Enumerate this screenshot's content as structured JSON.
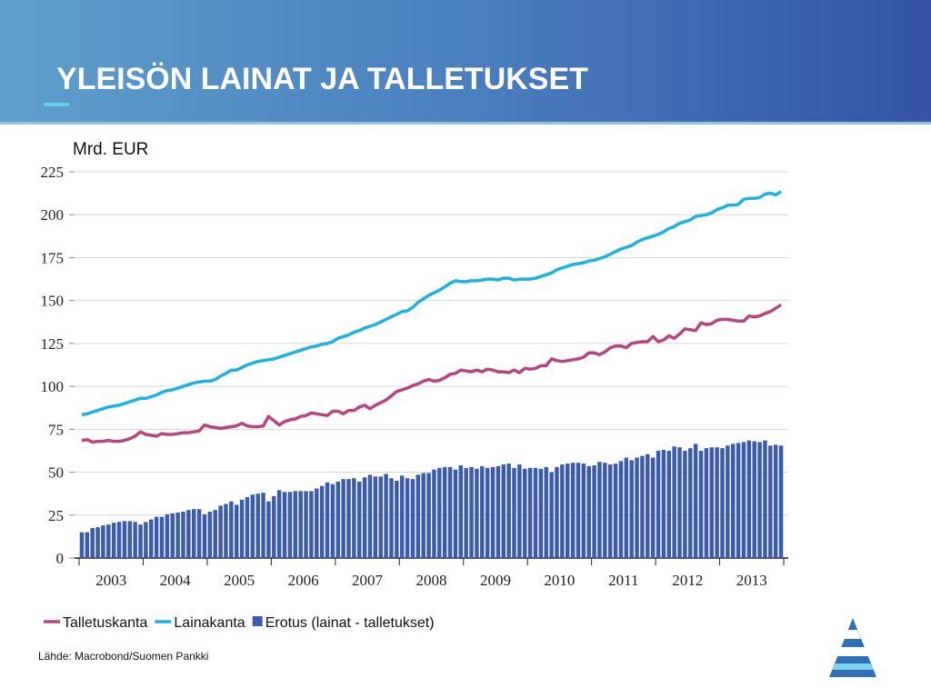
{
  "title": "YLEISÖN LAINAT JA TALLETUKSET",
  "source": "Lähde: Macrobond/Suomen Pankki",
  "chart_data": {
    "type": "bar",
    "ylabel": "Mrd. EUR",
    "ylim": [
      0,
      225
    ],
    "yticks": [
      0,
      25,
      50,
      75,
      100,
      125,
      150,
      175,
      200,
      225
    ],
    "grid": true,
    "categories": [
      null,
      null,
      null,
      null,
      null,
      null,
      "2003",
      null,
      null,
      null,
      null,
      null,
      null,
      null,
      null,
      null,
      null,
      null,
      "2004",
      null,
      null,
      null,
      null,
      null,
      null,
      null,
      null,
      null,
      null,
      null,
      "2005",
      null,
      null,
      null,
      null,
      null,
      null,
      null,
      null,
      null,
      null,
      null,
      "2006",
      null,
      null,
      null,
      null,
      null,
      null,
      null,
      null,
      null,
      null,
      null,
      "2007",
      null,
      null,
      null,
      null,
      null,
      null,
      null,
      null,
      null,
      null,
      null,
      "2008",
      null,
      null,
      null,
      null,
      null,
      null,
      null,
      null,
      null,
      null,
      null,
      "2009",
      null,
      null,
      null,
      null,
      null,
      null,
      null,
      null,
      null,
      null,
      null,
      "2010",
      null,
      null,
      null,
      null,
      null,
      null,
      null,
      null,
      null,
      null,
      null,
      "2011",
      null,
      null,
      null,
      null,
      null,
      null,
      null,
      null,
      null,
      null,
      null,
      "2012",
      null,
      null,
      null,
      null,
      null,
      null,
      null,
      null,
      null,
      null,
      null,
      "2013",
      null,
      null,
      null,
      null,
      null
    ],
    "series": [
      {
        "name": "Talletuskanta",
        "type": "line",
        "color": "#b8457f",
        "values": [
          68.5,
          69,
          67.5,
          68,
          68,
          68.5,
          68,
          68,
          68.5,
          69.5,
          71,
          73.5,
          72,
          71.5,
          71,
          72.5,
          72,
          72,
          72.5,
          73,
          73,
          73.5,
          74,
          77.5,
          76.5,
          76,
          75.5,
          76,
          76.5,
          77,
          78.5,
          77,
          76.5,
          76.5,
          77,
          82.5,
          80,
          77.5,
          79.5,
          80.5,
          81,
          82.5,
          83,
          84.5,
          84,
          83.5,
          83,
          85.5,
          85.5,
          84,
          86,
          86,
          88,
          89,
          87,
          89,
          90.5,
          92,
          94.5,
          97,
          98,
          99,
          100.5,
          101.5,
          103,
          104,
          103,
          103.5,
          105,
          107,
          107.5,
          109.5,
          109,
          108.5,
          109.5,
          108.5,
          110,
          109.5,
          108.5,
          108.5,
          108,
          109.5,
          108,
          110.5,
          110,
          110.5,
          112,
          112,
          116,
          115,
          114.5,
          115,
          115.5,
          116,
          117,
          119.5,
          119.5,
          118.5,
          120,
          122.5,
          123.5,
          123.5,
          122.5,
          125,
          125.5,
          126,
          126,
          129,
          126,
          127,
          129.5,
          128,
          130.5,
          133.5,
          133,
          132.5,
          137,
          136,
          136.5,
          138.5,
          139,
          139,
          138.5,
          138,
          138,
          141,
          140.5,
          141,
          142.5,
          143.5,
          145.5,
          147.5
        ]
      },
      {
        "name": "Lainakanta",
        "type": "line",
        "color": "#1cb3e0",
        "values": [
          83.5,
          84,
          85,
          86,
          87,
          88,
          88.5,
          89,
          90,
          91,
          92,
          93,
          93,
          94,
          95,
          96.5,
          97.5,
          98,
          99,
          100,
          101,
          102,
          102.5,
          103,
          103,
          104,
          106,
          107.5,
          109.5,
          109.5,
          111,
          112.5,
          113.5,
          114.5,
          115,
          115.5,
          116,
          117,
          118,
          119,
          120,
          121,
          122,
          123,
          123.5,
          124.5,
          125,
          126,
          128,
          129,
          130,
          131.5,
          132.5,
          134,
          135,
          136,
          137.5,
          139,
          140.5,
          142,
          143.5,
          144,
          146,
          149,
          151,
          153,
          154.5,
          156,
          158,
          160,
          161.5,
          161,
          161,
          161.5,
          161.5,
          162,
          162.5,
          162.5,
          162,
          163,
          163,
          162,
          162.5,
          162.5,
          162.5,
          163,
          164,
          165,
          166,
          168,
          169,
          170,
          171,
          171.5,
          172,
          173,
          173.5,
          174.5,
          175.5,
          177,
          178.5,
          180,
          181,
          182,
          184,
          185.5,
          186.5,
          187.5,
          188.5,
          190,
          192,
          193,
          195,
          196,
          197,
          199,
          199.5,
          200,
          201,
          203,
          204,
          205.5,
          205.5,
          206,
          209,
          209.5,
          209.5,
          210,
          212,
          212.5,
          211.5,
          213.5
        ]
      },
      {
        "name": "Erotus (lainat - talletukset)",
        "type": "bar",
        "color": "#3b5bb0",
        "values": [
          15,
          15,
          17.5,
          18,
          19,
          19.5,
          20.5,
          21,
          21.5,
          21.5,
          21,
          19.5,
          21,
          22.5,
          24,
          24,
          25.5,
          26,
          26.5,
          27,
          28,
          28.5,
          28.5,
          25.5,
          27,
          28,
          30.5,
          31.5,
          33,
          31,
          34,
          35.5,
          37,
          37.5,
          38,
          33,
          36,
          39.5,
          38.5,
          38.5,
          39,
          39,
          39,
          39,
          40.5,
          42,
          44,
          43,
          44.5,
          46,
          46,
          46.5,
          44.5,
          47,
          48.5,
          47.5,
          47.5,
          49,
          46.5,
          45,
          48,
          46.5,
          46,
          48.5,
          49.5,
          49.5,
          51.5,
          52.5,
          53,
          53,
          51.5,
          54,
          52.5,
          53,
          52,
          53.5,
          52.5,
          53,
          53.5,
          54.5,
          55,
          52.5,
          54.5,
          52,
          52.5,
          52.5,
          52,
          53,
          50,
          53,
          54.5,
          55,
          55.5,
          55.5,
          55,
          53.5,
          54,
          56,
          55.5,
          54.5,
          55,
          56.5,
          58.5,
          57,
          58.5,
          59.5,
          60.5,
          58.5,
          62.5,
          63,
          62.5,
          65,
          64.5,
          62.5,
          64,
          66.5,
          62.5,
          64,
          64.5,
          64.5,
          64,
          65.5,
          66.5,
          67,
          67.5,
          68.5,
          68,
          67.5,
          68.5,
          65.5,
          66,
          65.5
        ]
      }
    ]
  }
}
